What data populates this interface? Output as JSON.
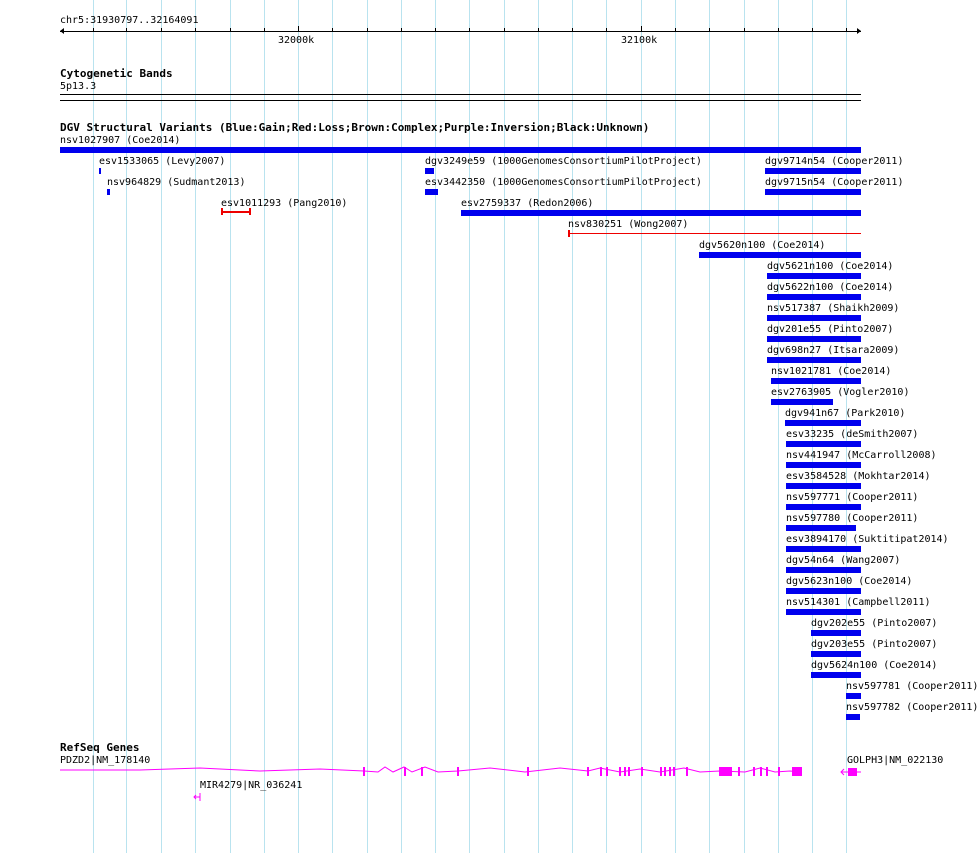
{
  "ruler": {
    "locus": "chr5:31930797..32164091",
    "ticks": [
      "32000k",
      "32100k"
    ]
  },
  "cytoband": {
    "title": "Cytogenetic Bands",
    "band": "5p13.3"
  },
  "dgv": {
    "title": "DGV Structural Variants (Blue:Gain;Red:Loss;Brown:Complex;Purple:Inversion;Black:Unknown)",
    "features": [
      {
        "label": "nsv1027907 (Coe2014)",
        "type": "gain"
      },
      {
        "label": "esv1533065 (Levy2007)",
        "type": "gain"
      },
      {
        "label": "dgv3249e59 (1000GenomesConsortiumPilotProject)",
        "type": "gain"
      },
      {
        "label": "dgv9714n54 (Cooper2011)",
        "type": "gain"
      },
      {
        "label": "nsv964829 (Sudmant2013)",
        "type": "gain"
      },
      {
        "label": "esv3442350 (1000GenomesConsortiumPilotProject)",
        "type": "gain"
      },
      {
        "label": "dgv9715n54 (Cooper2011)",
        "type": "gain"
      },
      {
        "label": "esv1011293 (Pang2010)",
        "type": "loss"
      },
      {
        "label": "esv2759337 (Redon2006)",
        "type": "gain"
      },
      {
        "label": "nsv830251 (Wong2007)",
        "type": "loss"
      },
      {
        "label": "dgv5620n100 (Coe2014)",
        "type": "gain"
      },
      {
        "label": "dgv5621n100 (Coe2014)",
        "type": "gain"
      },
      {
        "label": "dgv5622n100 (Coe2014)",
        "type": "gain"
      },
      {
        "label": "nsv517387 (Shaikh2009)",
        "type": "gain"
      },
      {
        "label": "dgv201e55 (Pinto2007)",
        "type": "gain"
      },
      {
        "label": "dgv698n27 (Itsara2009)",
        "type": "gain"
      },
      {
        "label": "nsv1021781 (Coe2014)",
        "type": "gain"
      },
      {
        "label": "esv2763905 (Vogler2010)",
        "type": "gain"
      },
      {
        "label": "dgv941n67 (Park2010)",
        "type": "gain"
      },
      {
        "label": "esv33235 (deSmith2007)",
        "type": "gain"
      },
      {
        "label": "nsv441947 (McCarroll2008)",
        "type": "gain"
      },
      {
        "label": "esv3584528 (Mokhtar2014)",
        "type": "gain"
      },
      {
        "label": "nsv597771 (Cooper2011)",
        "type": "gain"
      },
      {
        "label": "nsv597780 (Cooper2011)",
        "type": "gain"
      },
      {
        "label": "esv3894170 (Suktitipat2014)",
        "type": "gain"
      },
      {
        "label": "dgv54n64 (Wang2007)",
        "type": "gain"
      },
      {
        "label": "dgv5623n100 (Coe2014)",
        "type": "gain"
      },
      {
        "label": "nsv514301 (Campbell2011)",
        "type": "gain"
      },
      {
        "label": "dgv202e55 (Pinto2007)",
        "type": "gain"
      },
      {
        "label": "dgv203e55 (Pinto2007)",
        "type": "gain"
      },
      {
        "label": "dgv5624n100 (Coe2014)",
        "type": "gain"
      },
      {
        "label": "nsv597781 (Cooper2011)",
        "type": "gain"
      },
      {
        "label": "nsv597782 (Cooper2011)",
        "type": "gain"
      }
    ]
  },
  "refseq": {
    "title": "RefSeq Genes",
    "genes": [
      {
        "label": "PDZD2|NM_178140"
      },
      {
        "label": "MIR4279|NR_036241"
      },
      {
        "label": "GOLPH3|NM_022130"
      }
    ]
  },
  "colors": {
    "gain": "#0000ee",
    "loss": "#ee0000",
    "gene": "#ff00ff",
    "grid": "#b9e3ef"
  }
}
